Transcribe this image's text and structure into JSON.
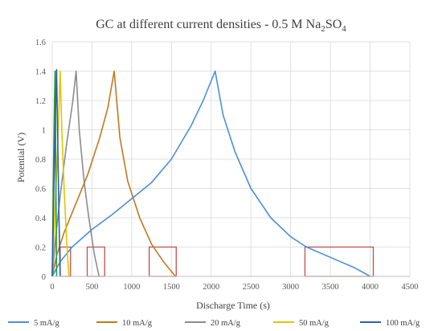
{
  "chart_data": {
    "type": "line",
    "title_main": "GC at different current densities - 0.5 M Na",
    "title_sub_1": "2",
    "title_mid": "SO",
    "title_sub_2": "4",
    "xlabel": "Discharge Time (s)",
    "ylabel": "Potential (V)",
    "xlim": [
      0,
      4500
    ],
    "ylim": [
      0,
      1.6
    ],
    "x_ticks": [
      "0",
      "500",
      "1000",
      "1500",
      "2000",
      "2500",
      "3000",
      "3500",
      "4000",
      "4500"
    ],
    "y_ticks": [
      "0",
      "0.2",
      "0.4",
      "0.6",
      "0.8",
      "1",
      "1.2",
      "1.4",
      "1.6"
    ],
    "grid": true,
    "legend_position": "bottom",
    "series": [
      {
        "name": "5 mA/g",
        "color": "#4a90d9",
        "x": [
          0,
          100,
          250,
          500,
          750,
          1000,
          1250,
          1500,
          1750,
          1900,
          2050,
          2150,
          2300,
          2500,
          2750,
          3000,
          3200,
          3500,
          3800,
          4000
        ],
        "y": [
          0,
          0.1,
          0.2,
          0.32,
          0.42,
          0.53,
          0.64,
          0.8,
          1.03,
          1.2,
          1.4,
          1.1,
          0.85,
          0.6,
          0.4,
          0.27,
          0.2,
          0.13,
          0.06,
          0
        ]
      },
      {
        "name": "10 mA/g",
        "color": "#c07a1a",
        "x": [
          0,
          60,
          150,
          300,
          450,
          600,
          700,
          780,
          850,
          950,
          1100,
          1250,
          1400,
          1550
        ],
        "y": [
          0,
          0.15,
          0.3,
          0.5,
          0.7,
          0.95,
          1.15,
          1.4,
          0.95,
          0.65,
          0.4,
          0.22,
          0.1,
          0
        ]
      },
      {
        "name": "20 mA/g",
        "color": "#8c8c8c",
        "x": [
          0,
          40,
          100,
          180,
          260,
          300,
          340,
          400,
          460,
          530,
          590
        ],
        "y": [
          0,
          0.25,
          0.55,
          0.9,
          1.2,
          1.4,
          1.0,
          0.65,
          0.4,
          0.15,
          0
        ]
      },
      {
        "name": "50 mA/g",
        "color": "#e6c300",
        "x": [
          0,
          30,
          70,
          100,
          120,
          150,
          180,
          210
        ],
        "y": [
          0,
          0.4,
          0.9,
          1.4,
          1.0,
          0.6,
          0.25,
          0
        ]
      },
      {
        "name": "100 mA/g",
        "color": "#2c5fb3",
        "x": [
          0,
          20,
          40,
          55,
          70,
          85,
          100
        ],
        "y": [
          0,
          0.6,
          1.1,
          1.41,
          0.9,
          0.4,
          0
        ]
      },
      {
        "name": "",
        "color": "#2ca02c",
        "x": [
          0,
          15,
          25,
          35,
          45,
          55
        ],
        "y": [
          0,
          0.7,
          1.1,
          1.4,
          0.7,
          0
        ]
      }
    ],
    "highlight_boxes": [
      {
        "x0": 100,
        "x1": 230,
        "y0": 0,
        "y1": 0.2
      },
      {
        "x0": 440,
        "x1": 660,
        "y0": 0,
        "y1": 0.2
      },
      {
        "x0": 1220,
        "x1": 1560,
        "y0": 0,
        "y1": 0.2
      },
      {
        "x0": 3180,
        "x1": 4040,
        "y0": 0,
        "y1": 0.2
      }
    ]
  }
}
